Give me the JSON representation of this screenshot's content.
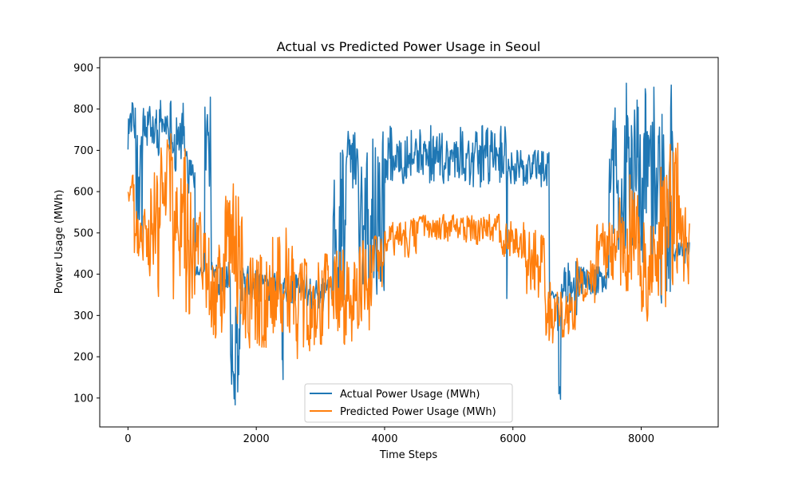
{
  "chart_data": {
    "type": "line",
    "title": "Actual vs Predicted Power Usage in Seoul",
    "xlabel": "Time Steps",
    "ylabel": "Power Usage (MWh)",
    "xlim": [
      -440,
      9200
    ],
    "ylim": [
      30,
      925
    ],
    "xticks": [
      0,
      2000,
      4000,
      6000,
      8000
    ],
    "yticks": [
      100,
      200,
      300,
      400,
      500,
      600,
      700,
      800,
      900
    ],
    "legend_position": "bottom-center",
    "grid": false,
    "series": [
      {
        "name": "Actual Power Usage (MWh)",
        "color": "#1f77b4",
        "x_start": 0,
        "x_end": 8760,
        "segments": [
          {
            "x_end": 130,
            "low": 700,
            "high": 820
          },
          {
            "x_end": 250,
            "low": 385,
            "high": 835
          },
          {
            "x_end": 500,
            "low": 680,
            "high": 810
          },
          {
            "x_end": 700,
            "low": 700,
            "high": 830
          },
          {
            "x_end": 900,
            "low": 640,
            "high": 820
          },
          {
            "x_end": 1050,
            "low": 590,
            "high": 740
          },
          {
            "x_end": 1200,
            "low": 395,
            "high": 420
          },
          {
            "x_end": 1300,
            "low": 600,
            "high": 830
          },
          {
            "x_end": 1600,
            "low": 350,
            "high": 445
          },
          {
            "x_end": 1750,
            "low": 75,
            "high": 420
          },
          {
            "x_end": 2000,
            "low": 330,
            "high": 440
          },
          {
            "x_end": 2400,
            "low": 320,
            "high": 415
          },
          {
            "x_end": 2420,
            "low": 68,
            "high": 330
          },
          {
            "x_end": 2800,
            "low": 320,
            "high": 400
          },
          {
            "x_end": 3200,
            "low": 310,
            "high": 390
          },
          {
            "x_end": 3400,
            "low": 330,
            "high": 740
          },
          {
            "x_end": 3600,
            "low": 600,
            "high": 750
          },
          {
            "x_end": 4000,
            "low": 350,
            "high": 760
          },
          {
            "x_end": 5000,
            "low": 620,
            "high": 760
          },
          {
            "x_end": 5900,
            "low": 610,
            "high": 760
          },
          {
            "x_end": 5930,
            "low": 335,
            "high": 650
          },
          {
            "x_end": 6570,
            "low": 610,
            "high": 700
          },
          {
            "x_end": 6700,
            "low": 340,
            "high": 360
          },
          {
            "x_end": 6750,
            "low": 75,
            "high": 380
          },
          {
            "x_end": 7000,
            "low": 300,
            "high": 440
          },
          {
            "x_end": 7500,
            "low": 345,
            "high": 420
          },
          {
            "x_end": 7600,
            "low": 380,
            "high": 825
          },
          {
            "x_end": 8000,
            "low": 420,
            "high": 880
          },
          {
            "x_end": 8300,
            "low": 370,
            "high": 870
          },
          {
            "x_end": 8500,
            "low": 330,
            "high": 885
          },
          {
            "x_end": 8760,
            "low": 420,
            "high": 480
          }
        ]
      },
      {
        "name": "Predicted Power Usage (MWh)",
        "color": "#ff7f0e",
        "x_start": 0,
        "x_end": 8760,
        "segments": [
          {
            "x_end": 100,
            "low": 560,
            "high": 640
          },
          {
            "x_end": 300,
            "low": 430,
            "high": 560
          },
          {
            "x_end": 500,
            "low": 340,
            "high": 660
          },
          {
            "x_end": 700,
            "low": 520,
            "high": 745
          },
          {
            "x_end": 1000,
            "low": 300,
            "high": 710
          },
          {
            "x_end": 1300,
            "low": 300,
            "high": 550
          },
          {
            "x_end": 1500,
            "low": 245,
            "high": 550
          },
          {
            "x_end": 1800,
            "low": 260,
            "high": 625
          },
          {
            "x_end": 2200,
            "low": 220,
            "high": 450
          },
          {
            "x_end": 2600,
            "low": 250,
            "high": 520
          },
          {
            "x_end": 3000,
            "low": 180,
            "high": 440
          },
          {
            "x_end": 3400,
            "low": 230,
            "high": 460
          },
          {
            "x_end": 3800,
            "low": 230,
            "high": 490
          },
          {
            "x_end": 4000,
            "low": 360,
            "high": 500
          },
          {
            "x_end": 4500,
            "low": 440,
            "high": 535
          },
          {
            "x_end": 5200,
            "low": 480,
            "high": 545
          },
          {
            "x_end": 5800,
            "low": 470,
            "high": 545
          },
          {
            "x_end": 6200,
            "low": 430,
            "high": 530
          },
          {
            "x_end": 6500,
            "low": 330,
            "high": 510
          },
          {
            "x_end": 6700,
            "low": 225,
            "high": 380
          },
          {
            "x_end": 7000,
            "low": 240,
            "high": 360
          },
          {
            "x_end": 7300,
            "low": 330,
            "high": 440
          },
          {
            "x_end": 7600,
            "low": 340,
            "high": 540
          },
          {
            "x_end": 8000,
            "low": 340,
            "high": 660
          },
          {
            "x_end": 8300,
            "low": 285,
            "high": 530
          },
          {
            "x_end": 8500,
            "low": 300,
            "high": 715
          },
          {
            "x_end": 8600,
            "low": 380,
            "high": 735
          },
          {
            "x_end": 8760,
            "low": 365,
            "high": 590
          }
        ]
      }
    ]
  }
}
